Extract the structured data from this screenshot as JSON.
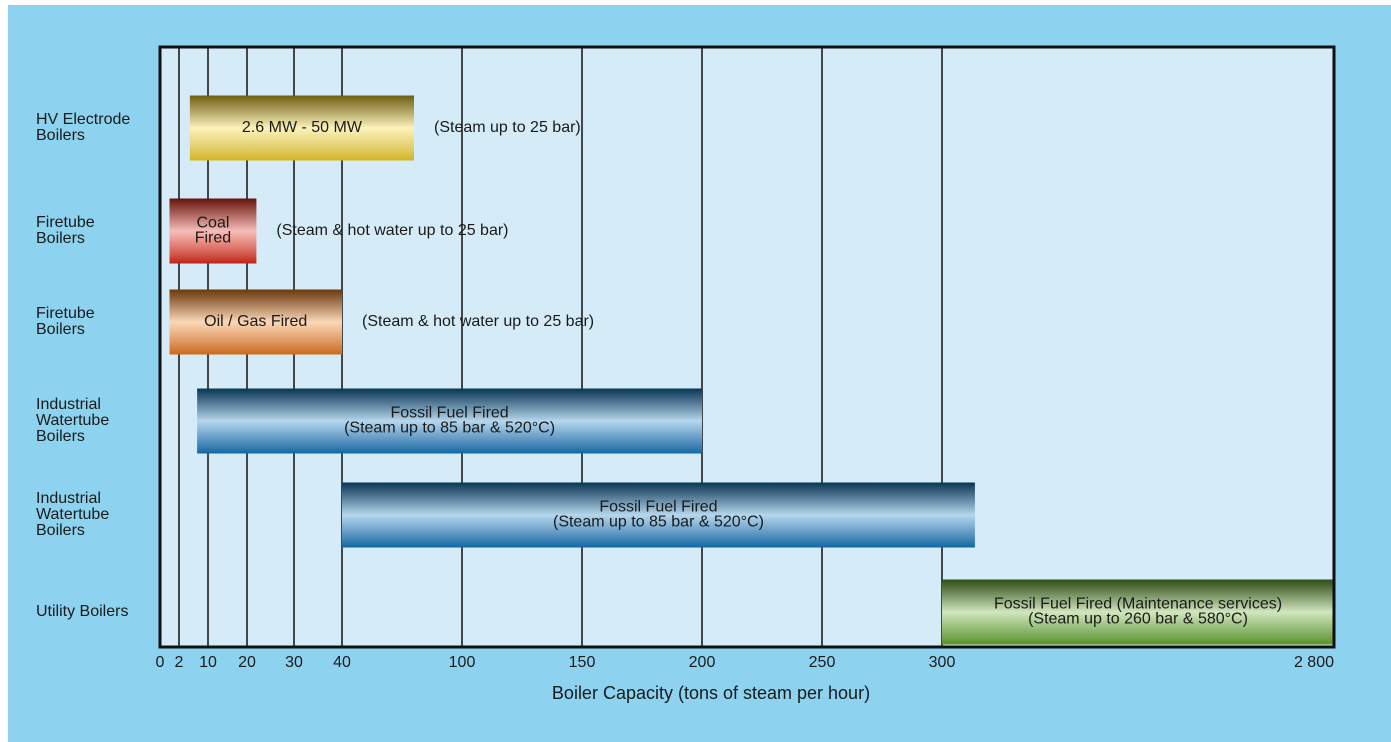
{
  "chart_data": {
    "type": "range-bar",
    "xlabel": "Boiler Capacity (tons of steam per hour)",
    "xticks": [
      0,
      2,
      10,
      20,
      30,
      40,
      100,
      150,
      200,
      250,
      300,
      {
        "value": 2800,
        "label": "2 800"
      }
    ],
    "xlim": [
      0,
      2800
    ],
    "grid": true,
    "bars": [
      {
        "category": "HV Electrode Boilers",
        "start": 5,
        "end": 76,
        "color": "#f7d51a",
        "label": [
          "2.6 MW - 50 MW"
        ],
        "note": "(Steam up to 25 bar)"
      },
      {
        "category": "Firetube Boilers",
        "start": 1,
        "end": 22,
        "color": "#e2231a",
        "label": [
          "Coal",
          "Fired"
        ],
        "note": "(Steam & hot water up to 25 bar)"
      },
      {
        "category": "Firetube Boilers",
        "start": 1,
        "end": 40,
        "color": "#ee7d11",
        "label": [
          "Oil / Gas Fired"
        ],
        "note": "(Steam & hot water up to 25 bar)"
      },
      {
        "category": "Industrial Watertube Boilers",
        "start": 7,
        "end": 200,
        "color": "#0a7ac0",
        "label": [
          "Fossil Fuel Fired",
          "(Steam up to 85 bar & 520°C)"
        ]
      },
      {
        "category": "Industrial Watertube Boilers",
        "start": 40,
        "end": 510,
        "color": "#0a7ac0",
        "label": [
          "Fossil Fuel Fired",
          "(Steam up to 85 bar & 520°C)"
        ]
      },
      {
        "category": "Utility Boilers",
        "start": 300,
        "end": 2800,
        "color": "#6aab2a",
        "label": [
          "Fossil Fuel Fired (Maintenance services)",
          "(Steam up to 260 bar & 580°C)"
        ]
      }
    ]
  }
}
